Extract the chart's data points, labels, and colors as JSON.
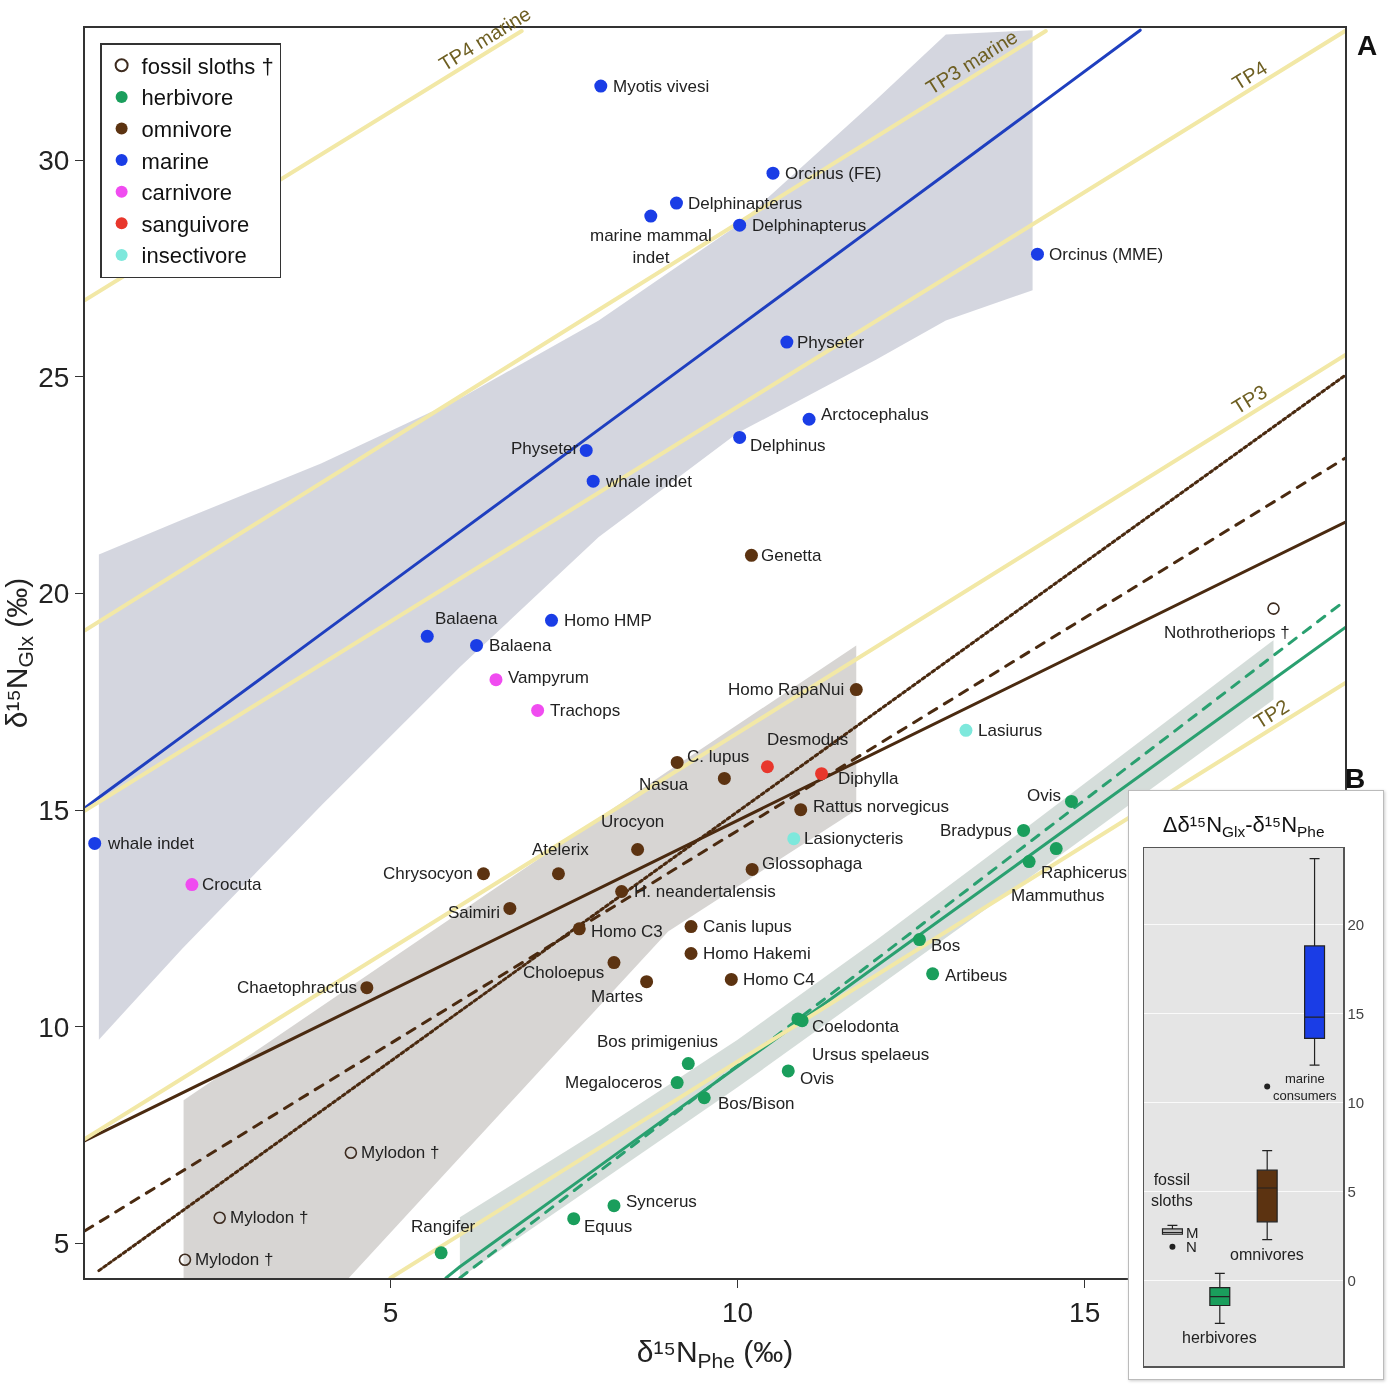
{
  "chart_data": [
    {
      "type": "scatter",
      "xlabel": "δ¹⁵N$_{Phe}$ (‰)",
      "ylabel": "δ¹⁵N$_{Glx}$ (‰)",
      "xlim": [
        0.6,
        18.75
      ],
      "xticks": [
        5,
        10,
        15
      ],
      "ylim": [
        4.2,
        33.05
      ],
      "yticks": [
        5,
        10,
        15,
        20,
        25,
        30
      ],
      "legend": "top left",
      "marker": "circle",
      "series": [
        {
          "name": "fossil sloths †",
          "type": "scatter",
          "marker": "circle-open",
          "color": "#3d2b1f",
          "x": [
            17.72,
            4.43,
            2.54,
            2.04
          ],
          "values": [
            19.65,
            7.09,
            5.59,
            4.62
          ]
        },
        {
          "name": "herbivore",
          "type": "scatter",
          "color": "#1a9e5c",
          "x": [
            14.81,
            14.12,
            14.59,
            14.2,
            12.62,
            12.81,
            10.87,
            10.93,
            10.73,
            9.29,
            9.13,
            9.52,
            8.22,
            7.64,
            5.73
          ],
          "values": [
            15.2,
            14.53,
            14.11,
            13.81,
            12.01,
            11.22,
            10.18,
            10.14,
            8.98,
            9.15,
            8.71,
            8.36,
            5.87,
            5.57,
            4.78
          ]
        },
        {
          "name": "omnivore",
          "type": "scatter",
          "color": "#5c3311",
          "x": [
            10.2,
            11.71,
            9.13,
            9.81,
            10.91,
            8.56,
            7.42,
            6.34,
            10.21,
            8.33,
            6.72,
            9.33,
            7.72,
            9.33,
            8.22,
            8.69,
            9.91,
            4.66
          ],
          "values": [
            20.88,
            17.78,
            16.1,
            15.73,
            15.01,
            14.09,
            13.53,
            13.53,
            13.63,
            13.12,
            12.73,
            12.31,
            12.26,
            11.69,
            11.48,
            11.04,
            11.09,
            10.9
          ]
        },
        {
          "name": "marine",
          "type": "scatter",
          "color": "#1a3de6",
          "x": [
            8.03,
            10.51,
            9.12,
            8.75,
            10.03,
            14.32,
            10.71,
            11.03,
            10.03,
            7.82,
            7.92,
            5.53,
            6.24,
            7.32,
            0.74
          ],
          "values": [
            31.71,
            29.7,
            29.01,
            28.71,
            28.5,
            27.83,
            25.8,
            24.02,
            23.6,
            23.3,
            22.59,
            19.01,
            18.8,
            19.38,
            14.23
          ]
        },
        {
          "name": "carnivore",
          "type": "scatter",
          "color": "#f04cf0",
          "x": [
            6.52,
            7.12,
            2.14
          ],
          "values": [
            18.01,
            17.3,
            13.28
          ]
        },
        {
          "name": "sanguivore",
          "type": "scatter",
          "color": "#e8372c",
          "x": [
            10.43,
            11.21
          ],
          "values": [
            16.0,
            15.84
          ]
        },
        {
          "name": "insectivore",
          "type": "scatter",
          "color": "#7ee8dc",
          "x": [
            13.29,
            10.81
          ],
          "values": [
            16.84,
            14.34
          ]
        },
        {
          "type": "line",
          "marker": "none",
          "color": "#1f3fbf",
          "line_style": "solid",
          "x": [
            0.6,
            0.8,
            2,
            4,
            6,
            8,
            10,
            12,
            13,
            14.25,
            15.8
          ],
          "values": [
            15.05,
            15.29,
            16.7,
            19.06,
            21.42,
            23.78,
            26.14,
            28.5,
            29.68,
            31.16,
            33.0
          ],
          "lower": [
            null,
            9.7,
            11.8,
            15.1,
            18.3,
            21.3,
            23.7,
            25.4,
            26.3,
            27.0,
            null
          ],
          "upper": [
            null,
            20.9,
            21.7,
            23.0,
            24.5,
            26.3,
            28.5,
            31.4,
            32.9,
            33.0,
            null
          ]
        },
        {
          "type": "line",
          "marker": "none",
          "color": "#4a2a10",
          "line_style": "dotted",
          "x": [
            0.8,
            2.02,
            4.4,
            9,
            11.71,
            18.75
          ],
          "values": [
            4.37,
            5.77,
            8.51,
            13.81,
            16.93,
            25.03
          ],
          "lower": [
            null,
            4.2,
            4.2,
            12.2,
            15.0,
            null
          ],
          "upper": [
            null,
            8.3,
            10.9,
            15.9,
            18.8,
            null
          ]
        },
        {
          "type": "line",
          "marker": "none",
          "color": "#2aa070",
          "line_style": "solid",
          "x": [
            5.8,
            6,
            8,
            10,
            12,
            14,
            17.72,
            18.75
          ],
          "values": [
            4.2,
            4.46,
            6.77,
            9.08,
            11.4,
            13.71,
            18.02,
            19.21
          ],
          "lower": [
            null,
            4.2,
            6.4,
            8.6,
            10.9,
            13.2,
            17.55,
            null
          ],
          "upper": [
            null,
            5.6,
            7.6,
            9.7,
            12.0,
            14.4,
            18.92,
            null
          ]
        },
        {
          "type": "line",
          "marker": "none",
          "color": "#4a2a10",
          "line_style": "solid",
          "x": [
            0.6,
            18.75
          ],
          "values": [
            7.37,
            21.64
          ]
        },
        {
          "type": "line",
          "marker": "none",
          "color": "#4a2a10",
          "line_style": "dashed",
          "x": [
            0.6,
            18.75
          ],
          "values": [
            5.29,
            23.12
          ]
        },
        {
          "type": "line",
          "marker": "none",
          "color": "#2aa070",
          "line_style": "dashed",
          "x": [
            6,
            18.75
          ],
          "values": [
            4.2,
            19.83
          ]
        },
        {
          "name": "TP4 marine",
          "type": "line",
          "marker": "none",
          "color": "#f2e8a6",
          "line_style": "solid",
          "x": [
            0.6,
            6.89
          ],
          "values": [
            26.77,
            32.98
          ]
        },
        {
          "name": "TP3 marine",
          "type": "line",
          "marker": "none",
          "color": "#f2e8a6",
          "line_style": "solid",
          "x": [
            0.6,
            14.44
          ],
          "values": [
            19.15,
            32.98
          ]
        },
        {
          "name": "TP4",
          "type": "line",
          "marker": "none",
          "color": "#f2e8a6",
          "line_style": "solid",
          "x": [
            0.6,
            18.75
          ],
          "values": [
            14.99,
            32.98
          ]
        },
        {
          "name": "TP3",
          "type": "line",
          "marker": "none",
          "color": "#f2e8a6",
          "line_style": "solid",
          "x": [
            0.6,
            18.75
          ],
          "values": [
            7.41,
            25.5
          ]
        },
        {
          "name": "TP2",
          "type": "line",
          "marker": "none",
          "color": "#f2e8a6",
          "line_style": "solid",
          "x": [
            5.0,
            18.75
          ],
          "values": [
            4.2,
            17.93
          ]
        }
      ],
      "annotations": [
        {
          "text": "Myotis vivesi",
          "x": 8.03,
          "y": 31.71
        },
        {
          "text": "Orcinus (FE)",
          "x": 10.51,
          "y": 29.7
        },
        {
          "text": "Delphinapterus",
          "x": 9.12,
          "y": 29.01
        },
        {
          "text": "marine mammal\nindet",
          "x": 8.75,
          "y": 28.71
        },
        {
          "text": "Delphinapterus",
          "x": 10.03,
          "y": 28.5
        },
        {
          "text": "Orcinus (MME)",
          "x": 14.32,
          "y": 27.83
        },
        {
          "text": "Physeter",
          "x": 10.71,
          "y": 25.8
        },
        {
          "text": "Arctocephalus",
          "x": 11.03,
          "y": 24.02
        },
        {
          "text": "Delphinus",
          "x": 10.03,
          "y": 23.6
        },
        {
          "text": "Physeter",
          "x": 7.82,
          "y": 23.3
        },
        {
          "text": "whale indet",
          "x": 7.92,
          "y": 22.59
        },
        {
          "text": "Genetta",
          "x": 10.2,
          "y": 20.88
        },
        {
          "text": "Balaena",
          "x": 5.53,
          "y": 19.01
        },
        {
          "text": "Balaena",
          "x": 6.24,
          "y": 18.8
        },
        {
          "text": "Homo HMP",
          "x": 7.32,
          "y": 19.38
        },
        {
          "text": "Vampyrum",
          "x": 6.52,
          "y": 18.01
        },
        {
          "text": "Trachops",
          "x": 7.12,
          "y": 17.3
        },
        {
          "text": "Homo RapaNui",
          "x": 11.71,
          "y": 17.78
        },
        {
          "text": "Lasiurus",
          "x": 13.29,
          "y": 16.84
        },
        {
          "text": "C. lupus",
          "x": 9.13,
          "y": 16.1
        },
        {
          "text": "Desmodus",
          "x": 10.43,
          "y": 16.0
        },
        {
          "text": "Nasua",
          "x": 9.81,
          "y": 15.73
        },
        {
          "text": "Diphylla",
          "x": 11.21,
          "y": 15.84
        },
        {
          "text": "Rattus norvegicus",
          "x": 10.91,
          "y": 15.01
        },
        {
          "text": "Lasionycteris",
          "x": 10.81,
          "y": 14.34
        },
        {
          "text": "Urocyon",
          "x": 8.56,
          "y": 14.09
        },
        {
          "text": "Atelerix",
          "x": 7.42,
          "y": 13.53
        },
        {
          "text": "Chrysocyon",
          "x": 6.34,
          "y": 13.53
        },
        {
          "text": "Glossophaga",
          "x": 10.21,
          "y": 13.63
        },
        {
          "text": "H. neandertalensis",
          "x": 8.33,
          "y": 13.12
        },
        {
          "text": "Saimiri",
          "x": 6.72,
          "y": 12.73
        },
        {
          "text": "Canis lupus",
          "x": 9.33,
          "y": 12.31
        },
        {
          "text": "Homo C3",
          "x": 7.72,
          "y": 12.26
        },
        {
          "text": "Homo Hakemi",
          "x": 9.33,
          "y": 11.69
        },
        {
          "text": "Choloepus",
          "x": 8.22,
          "y": 11.48
        },
        {
          "text": "Martes",
          "x": 8.69,
          "y": 11.04
        },
        {
          "text": "Homo C4",
          "x": 9.91,
          "y": 11.09
        },
        {
          "text": "Chaetophractus",
          "x": 4.66,
          "y": 10.9
        },
        {
          "text": "whale indet",
          "x": 0.74,
          "y": 14.23
        },
        {
          "text": "Crocuta",
          "x": 2.14,
          "y": 13.28
        },
        {
          "text": "Ovis",
          "x": 14.81,
          "y": 15.2
        },
        {
          "text": "Bradypus",
          "x": 14.12,
          "y": 14.53
        },
        {
          "text": "Raphicerus",
          "x": 14.59,
          "y": 14.11
        },
        {
          "text": "Mammuthus",
          "x": 14.2,
          "y": 13.81
        },
        {
          "text": "Bos",
          "x": 12.62,
          "y": 12.01
        },
        {
          "text": "Artibeus",
          "x": 12.81,
          "y": 11.22
        },
        {
          "text": "Coelodonta",
          "x": 10.87,
          "y": 10.18
        },
        {
          "text": "Ursus spelaeus",
          "x": 10.93,
          "y": 10.14
        },
        {
          "text": "Ovis",
          "x": 10.73,
          "y": 8.98
        },
        {
          "text": "Bos primigenius",
          "x": 9.29,
          "y": 9.15
        },
        {
          "text": "Megaloceros",
          "x": 9.13,
          "y": 8.71
        },
        {
          "text": "Bos/Bison",
          "x": 9.52,
          "y": 8.36
        },
        {
          "text": "Syncerus",
          "x": 8.22,
          "y": 5.87
        },
        {
          "text": "Equus",
          "x": 7.64,
          "y": 5.57
        },
        {
          "text": "Rangifer",
          "x": 5.73,
          "y": 4.78
        },
        {
          "text": "Nothrotheriops †",
          "x": 17.72,
          "y": 19.65
        },
        {
          "text": "Mylodon †",
          "x": 4.43,
          "y": 7.09
        },
        {
          "text": "Mylodon †",
          "x": 2.54,
          "y": 5.59
        },
        {
          "text": "Mylodon †",
          "x": 2.04,
          "y": 4.62
        },
        "A"
      ]
    },
    {
      "type": "box",
      "title": "Δδ¹⁵N$_{Glx}$-δ¹⁵N$_{Phe}$",
      "categories": [
        "fossil\nsloths",
        "herbivores",
        "omnivores",
        "marine\nconsumers"
      ],
      "colors": [
        "#bdbdbd",
        "#1a9e5c",
        "#5c3311",
        "#1a3de6"
      ],
      "boxes": [
        {
          "low": 2.6,
          "q1": 2.6,
          "median": 2.7,
          "q3": 2.9,
          "high": 3.1,
          "outliers": [
            1.9
          ]
        },
        {
          "low": -2.4,
          "q1": -1.4,
          "median": -0.9,
          "q3": -0.4,
          "high": 0.4
        },
        {
          "low": 2.3,
          "q1": 3.3,
          "median": 5.2,
          "q3": 6.2,
          "high": 7.3,
          "outliers": [
            10.9
          ]
        },
        {
          "low": 12.1,
          "q1": 13.6,
          "median": 14.8,
          "q3": 18.8,
          "high": 23.7
        }
      ],
      "ylim": [
        -4.8,
        24.3
      ],
      "yticks": [
        0,
        5,
        10,
        15,
        20
      ],
      "grid": "y",
      "tick_labels": "y",
      "annotations": [
        "B",
        "M",
        "N"
      ]
    }
  ]
}
